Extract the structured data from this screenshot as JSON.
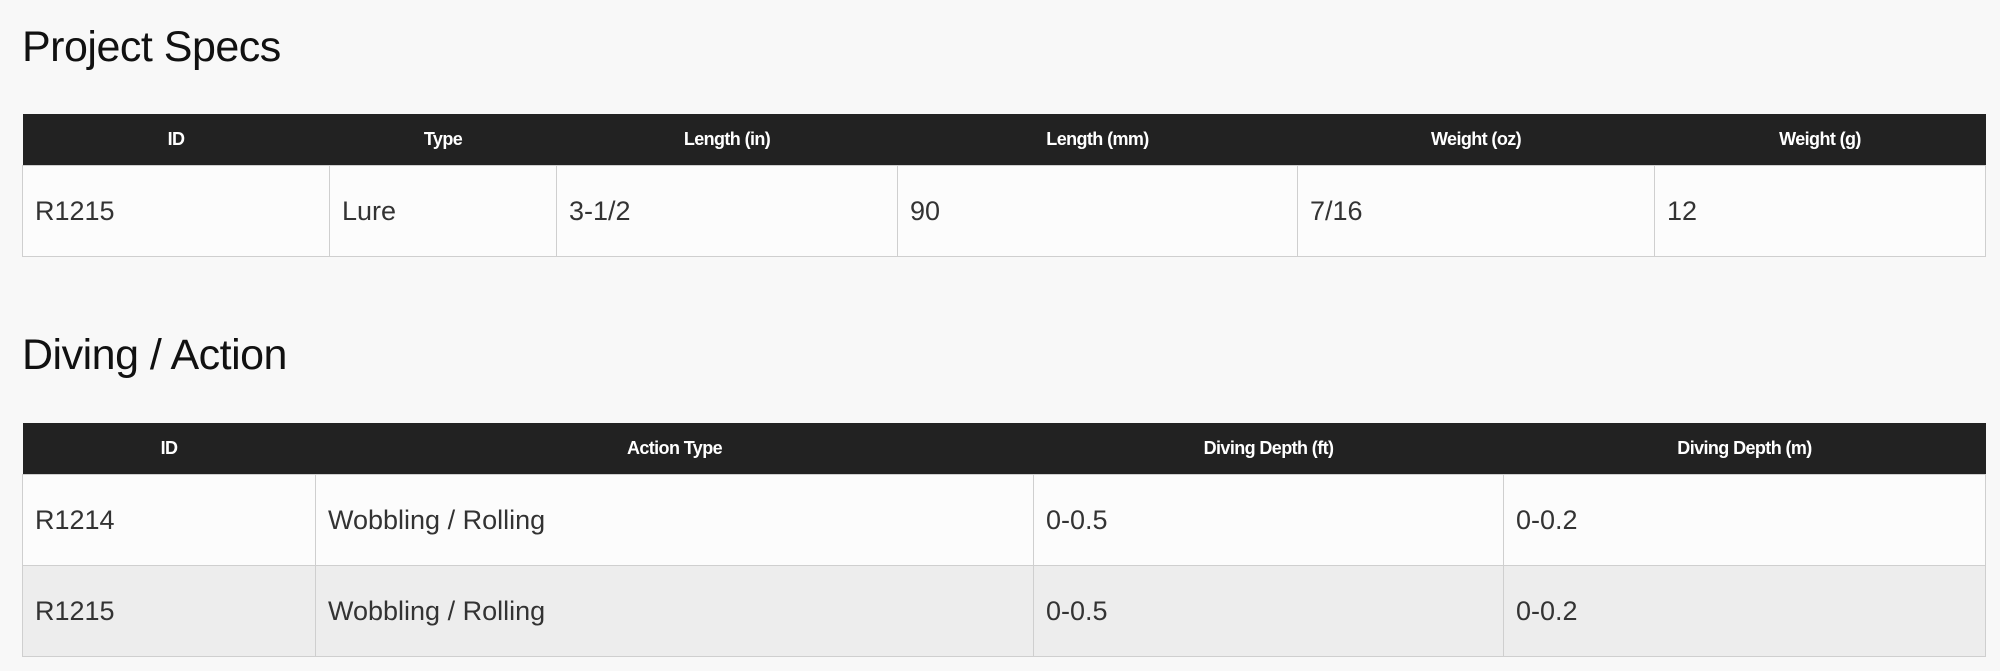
{
  "specs": {
    "title": "Project Specs",
    "headers": [
      "ID",
      "Type",
      "Length (in)",
      "Length (mm)",
      "Weight (oz)",
      "Weight (g)"
    ],
    "rows": [
      [
        "R1215",
        "Lure",
        "3-1/2",
        "90",
        "7/16",
        "12"
      ]
    ]
  },
  "diving": {
    "title": "Diving / Action",
    "headers": [
      "ID",
      "Action Type",
      "Diving Depth (ft)",
      "Diving Depth (m)"
    ],
    "rows": [
      [
        "R1214",
        "Wobbling / Rolling",
        "0-0.5",
        "0-0.2"
      ],
      [
        "R1215",
        "Wobbling / Rolling",
        "0-0.5",
        "0-0.2"
      ]
    ]
  }
}
